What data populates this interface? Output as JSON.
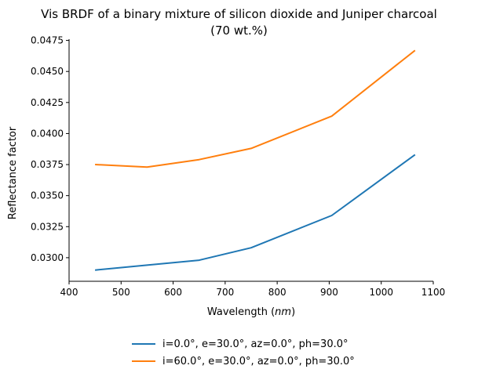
{
  "chart_data": {
    "type": "line",
    "title_line1": "Vis BRDF of a binary mixture of silicon dioxide and Juniper charcoal",
    "title_line2": "(70 wt.%)",
    "xlabel": "Wavelength",
    "xlabel_unit": "nm",
    "ylabel": "Reflectance factor",
    "xlim": [
      400,
      1100
    ],
    "ylim": [
      0.0281,
      0.0476
    ],
    "xticks": [
      400,
      500,
      600,
      700,
      800,
      900,
      1000,
      1100
    ],
    "yticks": [
      0.03,
      0.0325,
      0.035,
      0.0375,
      0.04,
      0.0425,
      0.045,
      0.0475
    ],
    "ytick_labels": [
      "0.0300",
      "0.0325",
      "0.0350",
      "0.0375",
      "0.0400",
      "0.0425",
      "0.0450",
      "0.0475"
    ],
    "grid": false,
    "legend_position": "bottom-center",
    "series": [
      {
        "name": "i=0.0°, e=30.0°, az=0.0°, ph=30.0°",
        "color": "#1f77b4",
        "x": [
          450,
          550,
          650,
          750,
          905,
          1065
        ],
        "y": [
          0.029,
          0.0294,
          0.0298,
          0.0308,
          0.0334,
          0.0383
        ]
      },
      {
        "name": "i=60.0°, e=30.0°, az=0.0°, ph=30.0°",
        "color": "#ff7f0e",
        "x": [
          450,
          550,
          650,
          750,
          905,
          1065
        ],
        "y": [
          0.0375,
          0.0373,
          0.0379,
          0.0388,
          0.0414,
          0.0467
        ]
      }
    ]
  }
}
